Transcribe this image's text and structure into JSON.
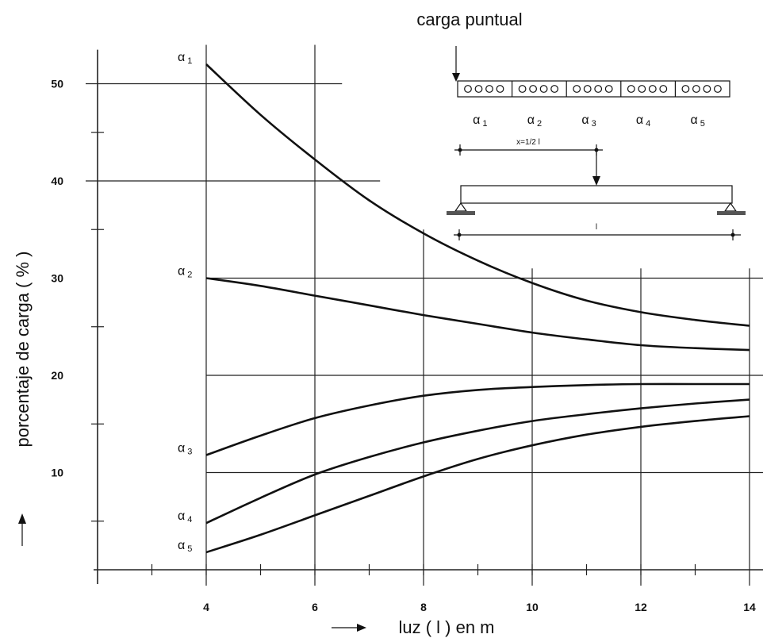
{
  "chart_data": {
    "type": "line",
    "title": "carga puntual",
    "xlabel": "luz ( l ) en m",
    "ylabel": "porcentaje de carga ( % )",
    "xlim": [
      2,
      14
    ],
    "ylim": [
      0,
      50
    ],
    "x_ticks": [
      4,
      6,
      8,
      10,
      12,
      14
    ],
    "y_ticks": [
      10,
      20,
      30,
      40,
      50
    ],
    "grid": true,
    "series": [
      {
        "name": "α1",
        "x": [
          4,
          5,
          6,
          7,
          8,
          9,
          10,
          11,
          12,
          13,
          14
        ],
        "y": [
          52.0,
          46.8,
          42.2,
          38.0,
          34.6,
          31.8,
          29.5,
          27.7,
          26.5,
          25.7,
          25.1
        ]
      },
      {
        "name": "α2",
        "x": [
          4,
          5,
          6,
          7,
          8,
          9,
          10,
          11,
          12,
          13,
          14
        ],
        "y": [
          30.0,
          29.2,
          28.2,
          27.2,
          26.2,
          25.3,
          24.4,
          23.7,
          23.1,
          22.8,
          22.6
        ]
      },
      {
        "name": "α3",
        "x": [
          4,
          5,
          6,
          7,
          8,
          9,
          10,
          11,
          12,
          13,
          14
        ],
        "y": [
          11.8,
          13.8,
          15.6,
          16.9,
          17.9,
          18.5,
          18.8,
          19.0,
          19.1,
          19.1,
          19.1
        ]
      },
      {
        "name": "α4",
        "x": [
          4,
          5,
          6,
          7,
          8,
          9,
          10,
          11,
          12,
          13,
          14
        ],
        "y": [
          4.8,
          7.4,
          9.8,
          11.6,
          13.1,
          14.3,
          15.3,
          16.0,
          16.6,
          17.1,
          17.5
        ]
      },
      {
        "name": "α5",
        "x": [
          4,
          5,
          6,
          7,
          8,
          9,
          10,
          11,
          12,
          13,
          14
        ],
        "y": [
          1.8,
          3.6,
          5.6,
          7.6,
          9.6,
          11.4,
          12.8,
          13.9,
          14.7,
          15.3,
          15.8
        ]
      }
    ]
  },
  "inset": {
    "slab_labels": [
      "α1",
      "α2",
      "α3",
      "α4",
      "α5"
    ],
    "load_position_label": "x=1/2 l",
    "span_label": "l"
  }
}
